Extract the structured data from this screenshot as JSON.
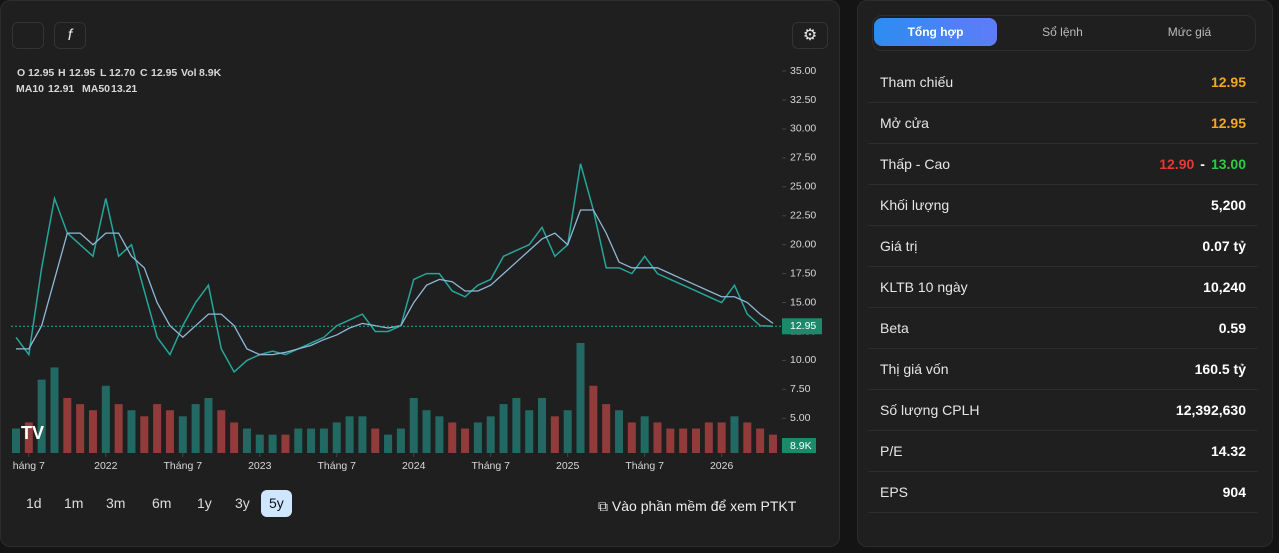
{
  "legend": {
    "open_label": "O",
    "open": "12.95",
    "high_label": "H",
    "high": "12.95",
    "low_label": "L",
    "low": "12.70",
    "close_label": "C",
    "close": "12.95",
    "vol_label": "Vol",
    "vol": "8.9K",
    "ma10_label": "MA10",
    "ma10": "12.91",
    "ma50_label": "MA50",
    "ma50": "13.21"
  },
  "chart_data": {
    "type": "line",
    "x": [
      "2021-06",
      "2021-07",
      "2021-08",
      "2021-09",
      "2021-10",
      "2021-11",
      "2021-12",
      "2022-01",
      "2022-02",
      "2022-03",
      "2022-04",
      "2022-05",
      "2022-06",
      "2022-07",
      "2022-08",
      "2022-09",
      "2022-10",
      "2022-11",
      "2022-12",
      "2023-01",
      "2023-02",
      "2023-03",
      "2023-04",
      "2023-05",
      "2023-06",
      "2023-07",
      "2023-08",
      "2023-09",
      "2023-10",
      "2023-11",
      "2023-12",
      "2024-01",
      "2024-02",
      "2024-03",
      "2024-04",
      "2024-05",
      "2024-06",
      "2024-07",
      "2024-08",
      "2024-09",
      "2024-10",
      "2024-11",
      "2024-12",
      "2025-01",
      "2025-02",
      "2025-03",
      "2025-04",
      "2025-05",
      "2025-06",
      "2025-07",
      "2025-08",
      "2025-09",
      "2025-10",
      "2025-11",
      "2025-12",
      "2026-01",
      "2026-02",
      "2026-03",
      "2026-04",
      "2026-05"
    ],
    "series": [
      {
        "color": "#26a69a",
        "values": [
          12,
          10.5,
          18,
          24,
          21,
          20,
          19,
          24,
          19,
          20,
          16,
          12,
          10.5,
          13,
          15,
          16.5,
          11,
          9,
          10,
          10.5,
          10.8,
          10.5,
          11,
          11.5,
          12,
          13,
          13.5,
          14,
          12.5,
          12.5,
          13,
          17,
          17.5,
          17.5,
          16,
          15.5,
          16.5,
          17,
          19,
          19.5,
          20,
          21.5,
          19,
          20,
          27,
          23,
          18,
          18,
          17.5,
          19,
          17.5,
          17,
          16.5,
          16,
          15.5,
          15,
          16.5,
          14,
          13,
          12.95
        ]
      },
      {
        "name": "MA50",
        "color": "#8fb8d8",
        "values": [
          11,
          11,
          13,
          17,
          21,
          21,
          20,
          21,
          21,
          19,
          18,
          15,
          13,
          12,
          13,
          14,
          14,
          13,
          11,
          10.5,
          10.5,
          10.7,
          11,
          11.3,
          11.8,
          12.2,
          12.8,
          13.2,
          13,
          12.8,
          13,
          15,
          16.5,
          17,
          16.8,
          16,
          16,
          16.5,
          17.5,
          18.5,
          19.5,
          20.5,
          21,
          20,
          23,
          23,
          21,
          18.5,
          18,
          18,
          18,
          17.5,
          17,
          16.5,
          16,
          15.5,
          15.5,
          15,
          14,
          13.2
        ]
      }
    ],
    "volume": {
      "up_color": "#26a69a",
      "down_color": "#ef5350",
      "values": [
        20,
        25,
        60,
        70,
        45,
        40,
        35,
        55,
        40,
        35,
        30,
        40,
        35,
        30,
        40,
        45,
        35,
        25,
        20,
        15,
        15,
        15,
        20,
        20,
        20,
        25,
        30,
        30,
        20,
        15,
        20,
        45,
        35,
        30,
        25,
        20,
        25,
        30,
        40,
        45,
        35,
        45,
        30,
        35,
        90,
        55,
        40,
        35,
        25,
        30,
        25,
        20,
        20,
        20,
        25,
        25,
        30,
        25,
        20,
        15
      ]
    },
    "ylim": [
      2,
      35.7
    ],
    "yticks": [
      {
        "value": 35,
        "label": "35.00"
      },
      {
        "value": 32.5,
        "label": "32.50"
      },
      {
        "value": 30,
        "label": "30.00"
      },
      {
        "value": 27.5,
        "label": "27.50"
      },
      {
        "value": 25,
        "label": "25.00"
      },
      {
        "value": 22.5,
        "label": "22.50"
      },
      {
        "value": 20,
        "label": "20.00"
      },
      {
        "value": 17.5,
        "label": "17.50"
      },
      {
        "value": 15,
        "label": "15.00"
      },
      {
        "value": 12.5,
        "label": "12.50"
      },
      {
        "value": 10,
        "label": "10.00"
      },
      {
        "value": 7.5,
        "label": "7.50"
      },
      {
        "value": 5,
        "label": "5.00"
      }
    ],
    "xticks": [
      {
        "value": "2021-07",
        "label": "háng 7"
      },
      {
        "value": "2022-01",
        "label": "2022"
      },
      {
        "value": "2022-07",
        "label": "Tháng 7"
      },
      {
        "value": "2023-01",
        "label": "2023"
      },
      {
        "value": "2023-07",
        "label": "Tháng 7"
      },
      {
        "value": "2024-01",
        "label": "2024"
      },
      {
        "value": "2024-07",
        "label": "Tháng 7"
      },
      {
        "value": "2025-01",
        "label": "2025"
      },
      {
        "value": "2025-07",
        "label": "Tháng 7"
      },
      {
        "value": "2026-01",
        "label": "2026"
      }
    ],
    "last_price": {
      "value": 12.95,
      "label": "12.95"
    },
    "last_volume": "8.9K"
  },
  "periods": {
    "items": [
      "1d",
      "1m",
      "3m",
      "6m",
      "1y",
      "3y",
      "5y"
    ],
    "active": 6
  },
  "link": "Vào phần mềm để xem PTKT",
  "panel": {
    "tabs": [
      "Tổng hợp",
      "Sổ lệnh",
      "Mức giá"
    ],
    "active": 0,
    "rows": [
      {
        "label": "Tham chiếu",
        "value": "12.95",
        "color": "#f5a623"
      },
      {
        "label": "Mở cửa",
        "value": "12.95",
        "color": "#f5a623"
      },
      {
        "label": "Thấp - Cao",
        "low": "12.90",
        "separator": "-",
        "high": "13.00"
      },
      {
        "label": "Khối lượng",
        "value": "5,200"
      },
      {
        "label": "Giá trị",
        "value": "0.07 tỷ"
      },
      {
        "label": "KLTB 10 ngày",
        "value": "10,240"
      },
      {
        "label": "Beta",
        "value": "0.59"
      },
      {
        "label": "Thị giá vốn",
        "value": "160.5 tỷ"
      },
      {
        "label": "Số lượng CPLH",
        "value": "12,392,630"
      },
      {
        "label": "P/E",
        "value": "14.32"
      },
      {
        "label": "EPS",
        "value": "904"
      }
    ]
  }
}
